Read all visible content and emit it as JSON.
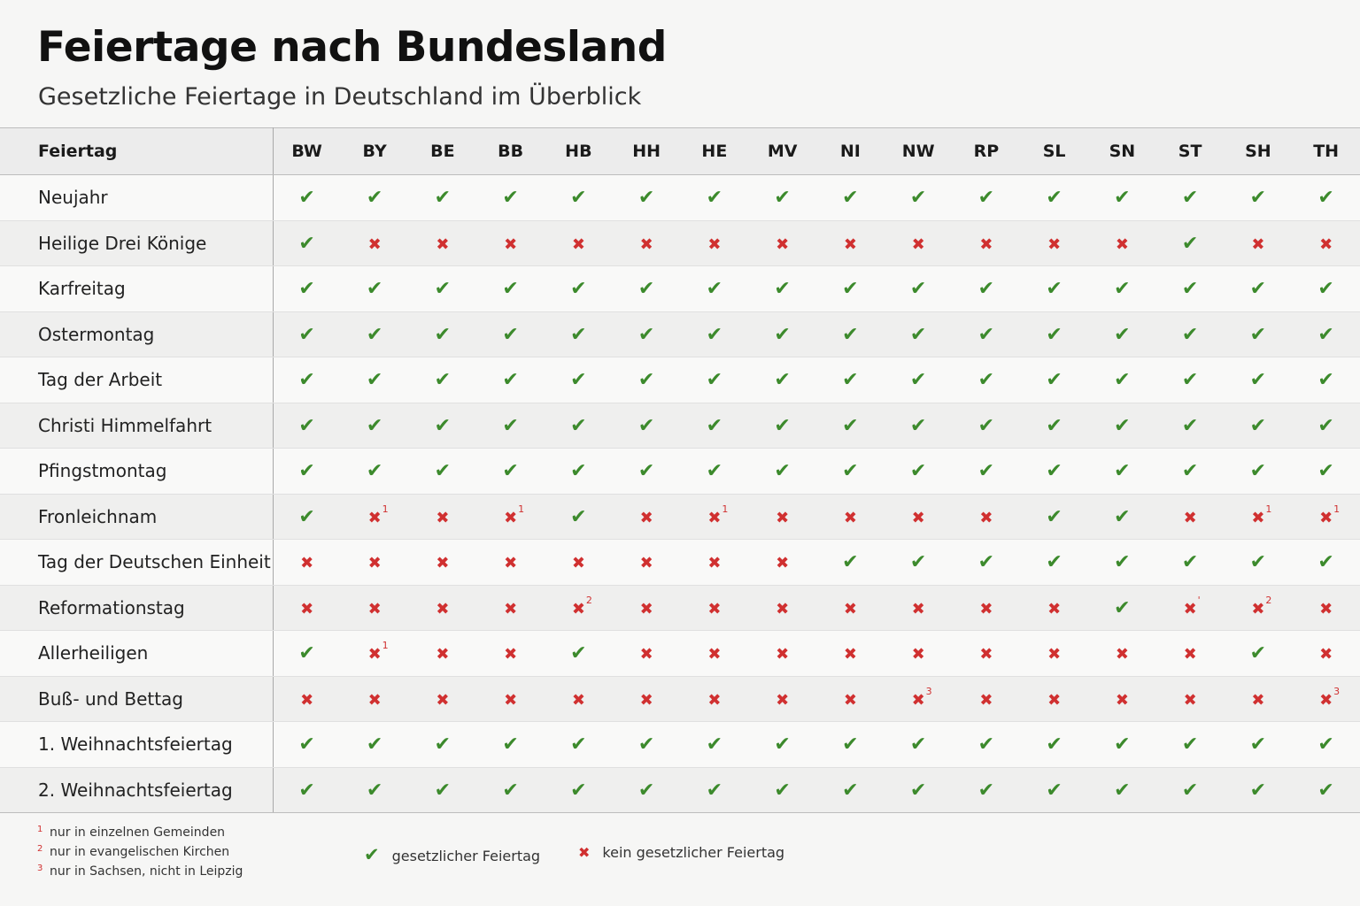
{
  "title": "Feiertage nach Bundesland",
  "subtitle": "Gesetzliche Feiertage in Deutschland im Überblick",
  "colors": {
    "yes": "#3c8a2c",
    "no": "#d03030"
  },
  "table": {
    "name_header": "Feiertag",
    "states": [
      "BW",
      "BY",
      "BE",
      "BB",
      "HB",
      "HH",
      "HE",
      "MV",
      "NI",
      "NW",
      "RP",
      "SL",
      "SN",
      "ST",
      "SH",
      "TH"
    ],
    "rows": [
      {
        "name": "Neujahr",
        "cells": [
          "y",
          "y",
          "y",
          "y",
          "y",
          "y",
          "y",
          "y",
          "y",
          "y",
          "y",
          "y",
          "y",
          "y",
          "y",
          "y"
        ]
      },
      {
        "name": "Heilige Drei Könige",
        "cells": [
          "y",
          "n",
          "n",
          "n",
          "n",
          "n",
          "n",
          "n",
          "n",
          "n",
          "n",
          "n",
          "n",
          "y",
          "n",
          "n"
        ]
      },
      {
        "name": "Karfreitag",
        "cells": [
          "y",
          "y",
          "y",
          "y",
          "y",
          "y",
          "y",
          "y",
          "y",
          "y",
          "y",
          "y",
          "y",
          "y",
          "y",
          "y"
        ]
      },
      {
        "name": "Ostermontag",
        "cells": [
          "y",
          "y",
          "y",
          "y",
          "y",
          "y",
          "y",
          "y",
          "y",
          "y",
          "y",
          "y",
          "y",
          "y",
          "y",
          "y"
        ]
      },
      {
        "name": "Tag der Arbeit",
        "cells": [
          "y",
          "y",
          "y",
          "y",
          "y",
          "y",
          "y",
          "y",
          "y",
          "y",
          "y",
          "y",
          "y",
          "y",
          "y",
          "y"
        ]
      },
      {
        "name": "Christi Himmelfahrt",
        "cells": [
          "y",
          "y",
          "y",
          "y",
          "y",
          "y",
          "y",
          "y",
          "y",
          "y",
          "y",
          "y",
          "y",
          "y",
          "y",
          "y"
        ]
      },
      {
        "name": "Pfingstmontag",
        "cells": [
          "y",
          "y",
          "y",
          "y",
          "y",
          "y",
          "y",
          "y",
          "y",
          "y",
          "y",
          "y",
          "y",
          "y",
          "y",
          "y"
        ]
      },
      {
        "name": "Fronleichnam",
        "cells": [
          "y",
          "n1",
          "n",
          "n1",
          "y",
          "n",
          "n1",
          "n",
          "n",
          "n",
          "n",
          "y",
          "y",
          "n",
          "n1",
          "n1"
        ]
      },
      {
        "name": "Tag der Deutschen Einheit",
        "cells": [
          "n",
          "n",
          "n",
          "n",
          "n",
          "n",
          "n",
          "n",
          "y",
          "y",
          "y",
          "y",
          "y",
          "y",
          "y",
          "y"
        ]
      },
      {
        "name": "Reformationstag",
        "cells": [
          "n",
          "n",
          "n",
          "n",
          "n2",
          "n",
          "n",
          "n",
          "n",
          "n",
          "n",
          "n",
          "y",
          "n'",
          "n2",
          "n"
        ]
      },
      {
        "name": "Allerheiligen",
        "cells": [
          "y",
          "n1",
          "n",
          "n",
          "y",
          "n",
          "n",
          "n",
          "n",
          "n",
          "n",
          "n",
          "n",
          "n",
          "y",
          "n"
        ]
      },
      {
        "name": "Buß- und Bettag",
        "cells": [
          "n",
          "n",
          "n",
          "n",
          "n",
          "n",
          "n",
          "n",
          "n",
          "n3",
          "n",
          "n",
          "n",
          "n",
          "n",
          "n3"
        ]
      },
      {
        "name": "1. Weihnachtsfeiertag",
        "cells": [
          "y",
          "y",
          "y",
          "y",
          "y",
          "y",
          "y",
          "y",
          "y",
          "y",
          "y",
          "y",
          "y",
          "y",
          "y",
          "y"
        ]
      },
      {
        "name": "2. Weihnachtsfeiertag",
        "cells": [
          "y",
          "y",
          "y",
          "y",
          "y",
          "y",
          "y",
          "y",
          "y",
          "y",
          "y",
          "y",
          "y",
          "y",
          "y",
          "y"
        ]
      }
    ]
  },
  "footnotes": [
    {
      "mark": "1",
      "text": "nur in einzelnen Gemeinden"
    },
    {
      "mark": "2",
      "text": "nur in evangelischen Kirchen"
    },
    {
      "mark": "3",
      "text": "nur in Sachsen, nicht in Leipzig"
    }
  ],
  "legend": {
    "yes_icon": "check-icon",
    "yes_label": "gesetzlicher Feiertag",
    "no_icon": "cross-icon",
    "no_label": "kein gesetzlicher Feiertag"
  }
}
